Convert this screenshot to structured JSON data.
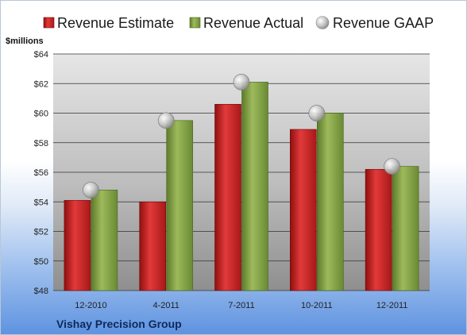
{
  "chart_data": {
    "type": "bar",
    "categories": [
      "12-2010",
      "4-2011",
      "7-2011",
      "10-2011",
      "12-2011"
    ],
    "series": [
      {
        "name": "Revenue Estimate",
        "type": "bar",
        "color": "#cc1f1f",
        "values": [
          54.1,
          54.0,
          60.6,
          58.9,
          56.2
        ]
      },
      {
        "name": "Revenue Actual",
        "type": "bar",
        "color": "#7f9f3f",
        "values": [
          54.8,
          59.5,
          62.1,
          60.0,
          56.4
        ]
      },
      {
        "name": "Revenue GAAP",
        "type": "marker",
        "color": "#bdbdbd",
        "values": [
          54.8,
          59.5,
          62.1,
          60.0,
          56.4
        ]
      }
    ],
    "ylabel": "$millions",
    "ylim": [
      48,
      64
    ],
    "yticks": [
      "$48",
      "$50",
      "$52",
      "$54",
      "$56",
      "$58",
      "$60",
      "$62",
      "$64"
    ],
    "ytick_values": [
      48,
      50,
      52,
      54,
      56,
      58,
      60,
      62,
      64
    ],
    "grid": true,
    "legend": "top"
  },
  "footer": {
    "company": "Vishay Precision Group"
  }
}
